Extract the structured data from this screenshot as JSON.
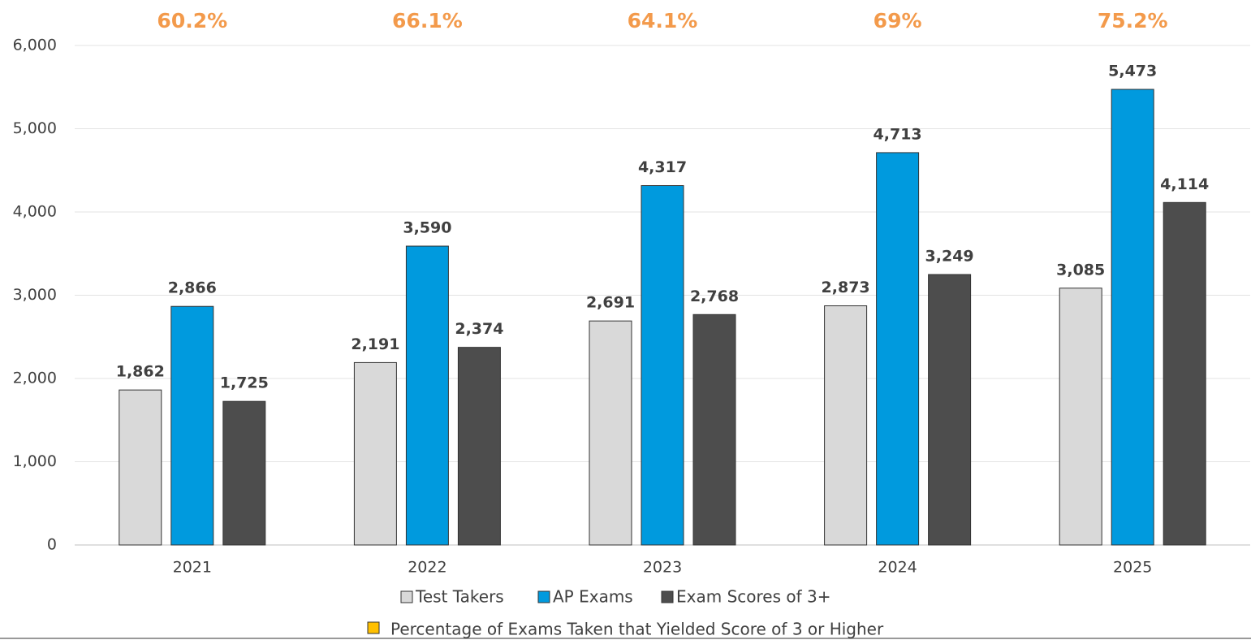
{
  "chart_data": {
    "type": "bar",
    "categories": [
      "2021",
      "2022",
      "2023",
      "2024",
      "2025"
    ],
    "series": [
      {
        "name": "Test Takers",
        "color": "#d9d9d9",
        "values": [
          1862,
          2191,
          2691,
          2873,
          3085
        ],
        "value_labels": [
          "1,862",
          "2,191",
          "2,691",
          "2,873",
          "3,085"
        ]
      },
      {
        "name": "AP Exams",
        "color": "#009ade",
        "values": [
          2866,
          3590,
          4317,
          4713,
          5473
        ],
        "value_labels": [
          "2,866",
          "3,590",
          "4,317",
          "4,713",
          "5,473"
        ]
      },
      {
        "name": "Exam Scores of 3+",
        "color": "#4d4d4d",
        "values": [
          1725,
          2374,
          2768,
          3249,
          4114
        ],
        "value_labels": [
          "1,725",
          "2,374",
          "2,768",
          "3,249",
          "4,114"
        ]
      }
    ],
    "percentages": {
      "name": "Percentage of Exams Taken that Yielded Score of 3 or Higher",
      "color": "#ffc000",
      "values": [
        60.2,
        66.1,
        64.1,
        69,
        75.2
      ],
      "value_labels": [
        "60.2%",
        "66.1%",
        "64.1%",
        "69%",
        "75.2%"
      ]
    },
    "ylim": [
      0,
      6000
    ],
    "yticks": [
      0,
      {
        "value": 1000,
        "label": "1,000"
      },
      {
        "value": 2000,
        "label": "2,000"
      },
      {
        "value": 3000,
        "label": "3,000"
      },
      {
        "value": 4000,
        "label": "4,000"
      },
      {
        "value": 5000,
        "label": "5,000"
      },
      {
        "value": 6000,
        "label": "6,000"
      }
    ],
    "grid": true
  }
}
